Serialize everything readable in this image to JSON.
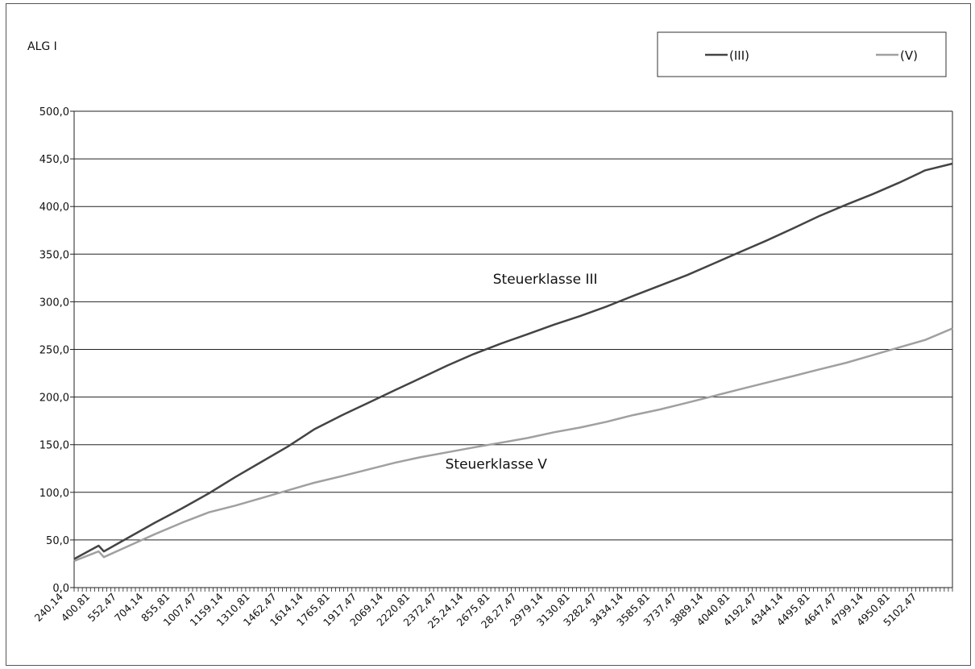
{
  "chart_data": {
    "type": "line",
    "ylabel": "ALG I",
    "ylim": [
      0,
      500
    ],
    "yticks": [
      0,
      50,
      100,
      150,
      200,
      250,
      300,
      350,
      400,
      450,
      500
    ],
    "grid": true,
    "legend_position": "top-right",
    "x_range": [
      240.14,
      5255
    ],
    "x_tick_labels": [
      "240,14",
      "400,81",
      "552,47",
      "704,14",
      "855,81",
      "1007,47",
      "1159,14",
      "1310,81",
      "1462,47",
      "1614,14",
      "1765,81",
      "1917,47",
      "2069,14",
      "2220,81",
      "2372,47",
      "25,24,14",
      "2675,81",
      "28,27,47",
      "2979,14",
      "3130,81",
      "3282,47",
      "3434,14",
      "3585,81",
      "3737,47",
      "3889,14",
      "4040,81",
      "4192,47",
      "4344,14",
      "4495,81",
      "4647,47",
      "4799,14",
      "4950,81",
      "5102,47"
    ],
    "series": [
      {
        "name": "(III)",
        "color": "#444444",
        "x": [
          240,
          380,
          410,
          555,
          700,
          855,
          1010,
          1160,
          1310,
          1460,
          1610,
          1770,
          1920,
          2070,
          2220,
          2370,
          2520,
          2675,
          2830,
          2980,
          3130,
          3280,
          3430,
          3585,
          3740,
          3890,
          4040,
          4190,
          4345,
          4495,
          4650,
          4800,
          4950,
          5100,
          5255
        ],
        "values": [
          30,
          44,
          38,
          53,
          68,
          83,
          99,
          116,
          132,
          148,
          166,
          181,
          194,
          207,
          220,
          233,
          245,
          256,
          266,
          276,
          285,
          295,
          306,
          317,
          328,
          340,
          352,
          364,
          377,
          390,
          402,
          413,
          425,
          438,
          445
        ]
      },
      {
        "name": "(V)",
        "color": "#a0a0a0",
        "x": [
          240,
          380,
          410,
          555,
          700,
          855,
          1010,
          1160,
          1310,
          1460,
          1610,
          1770,
          1920,
          2070,
          2220,
          2370,
          2520,
          2675,
          2830,
          2980,
          3130,
          3280,
          3430,
          3585,
          3740,
          3890,
          4040,
          4190,
          4345,
          4495,
          4650,
          4800,
          4950,
          5100,
          5255
        ],
        "values": [
          28,
          38,
          32,
          44,
          56,
          68,
          79,
          86,
          94,
          102,
          110,
          117,
          124,
          131,
          137,
          142,
          147,
          152,
          157,
          163,
          168,
          174,
          181,
          187,
          194,
          201,
          208,
          215,
          222,
          229,
          236,
          244,
          252,
          260,
          272
        ]
      }
    ],
    "annotations": [
      {
        "text": "Steuerklasse III",
        "x": 2930,
        "y": 319
      },
      {
        "text": "Steuerklasse V",
        "x": 2650,
        "y": 125
      }
    ]
  }
}
